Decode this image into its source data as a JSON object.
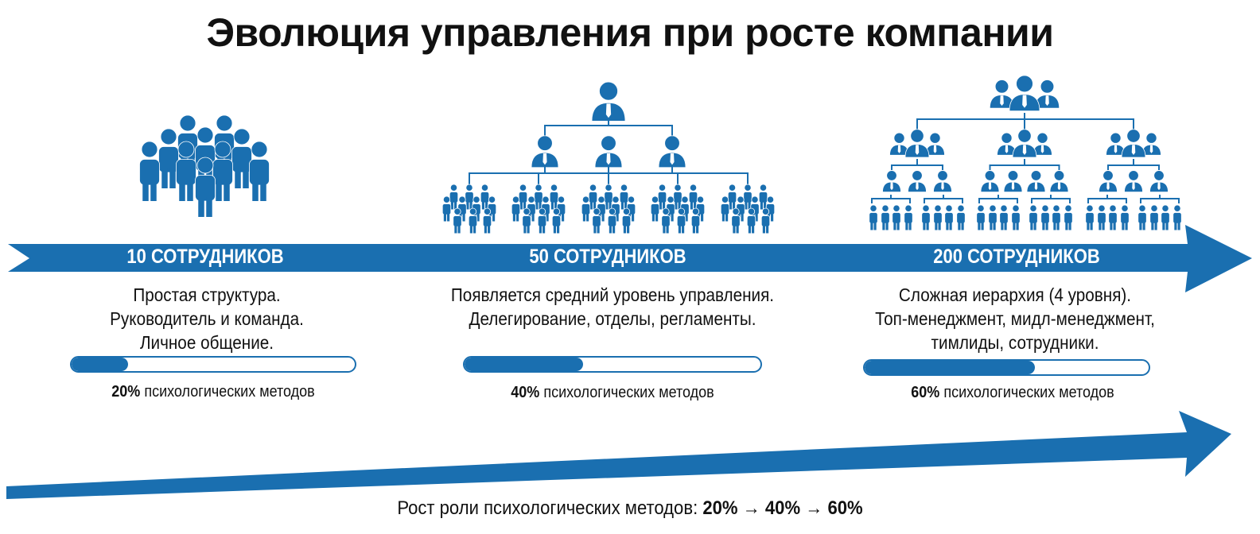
{
  "title": "Эволюция управления при росте компании",
  "accent_color": "#1a6fb0",
  "stages": [
    {
      "label": "10 СОТРУДНИКОВ",
      "description": [
        "Простая структура.",
        "Руководитель и команда.",
        "Личное общение."
      ],
      "percent_value": 20,
      "percent": "20%",
      "percent_text": "психологических методов",
      "icon": "team-group-icon"
    },
    {
      "label": "50 СОТРУДНИКОВ",
      "description": [
        "Появляется средний уровень управления.",
        "Делегирование, отделы, регламенты."
      ],
      "percent_value": 40,
      "percent": "40%",
      "percent_text": "психологических методов",
      "icon": "org-chart-3-level-icon"
    },
    {
      "label": "200 СОТРУДНИКОВ",
      "description": [
        "Сложная иерархия (4 уровня).",
        "Топ-менеджмент, мидл-менеджмент,",
        "тимлиды, сотрудники."
      ],
      "percent_value": 60,
      "percent": "60%",
      "percent_text": "психологических методов",
      "icon": "org-chart-4-level-icon"
    }
  ],
  "caption": {
    "prefix": "Рост роли психологических методов:",
    "values": [
      "20%",
      "40%",
      "60%"
    ],
    "arrow": "→"
  }
}
